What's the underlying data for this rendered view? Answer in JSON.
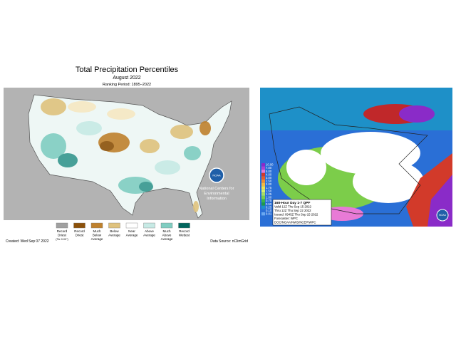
{
  "left_map": {
    "title": "Total Precipitation Percentiles",
    "subtitle": "August 2022",
    "period": "Ranking Period: 1895–2022",
    "legend": [
      {
        "label": "Record Driest",
        "note": "(Tie 0.00\")"
      },
      {
        "label": "Record Driest"
      },
      {
        "label": "Much Below Average"
      },
      {
        "label": "Below Average"
      },
      {
        "label": "Near Average"
      },
      {
        "label": "Above Average"
      },
      {
        "label": "Much Above Average"
      },
      {
        "label": "Record Wettest"
      }
    ],
    "logo": "NOAA",
    "agency": [
      "National Centers for",
      "Environmental",
      "Information"
    ],
    "created": "Created: Wed Sep 07 2022",
    "source": "Data Source: nClimGrid"
  },
  "right_map": {
    "scale": [
      "10.00",
      "7.00",
      "5.00",
      "4.00",
      "3.00",
      "2.50",
      "2.00",
      "1.75",
      "1.50",
      "1.25",
      "1.00",
      "0.75",
      "0.50",
      "0.25",
      "0.10",
      "0.01"
    ],
    "info": [
      "168-Hour Day 1-7 QPF",
      "Valid 12Z Thu Sep 15 2022",
      "Thru 12Z Thu Sep 22 2022",
      "Issued: 0945Z Thu Sep 15 2022",
      "Forecaster: WPC",
      "DOC/NOAA/NWS/NCEP/WPC"
    ],
    "logo": "NOAA"
  }
}
